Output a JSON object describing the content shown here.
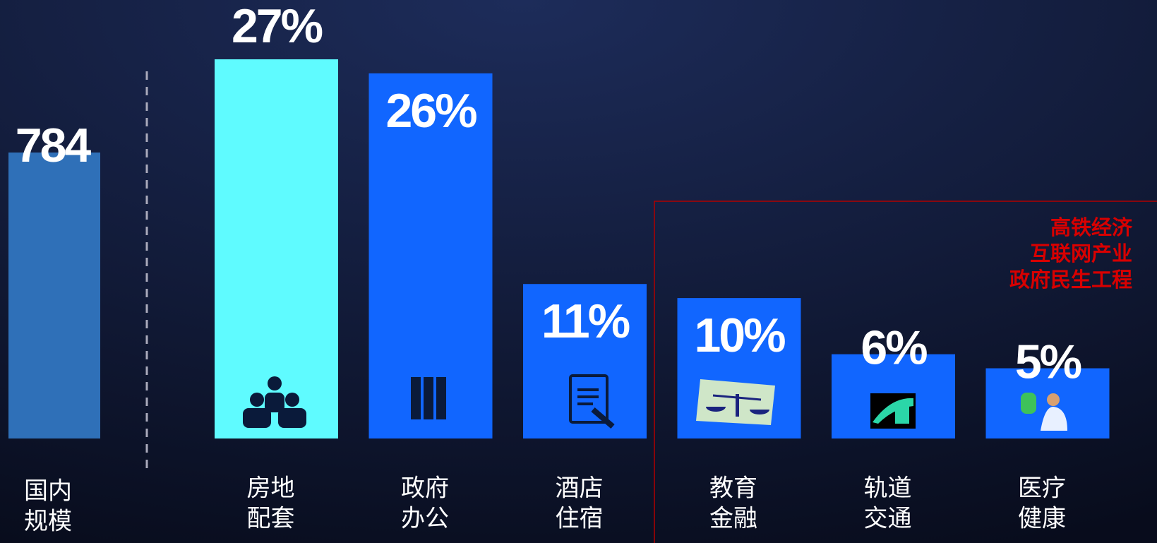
{
  "chart_data": {
    "type": "bar",
    "total": {
      "value": 784,
      "label": [
        "国内",
        "规模"
      ],
      "color": "#2f70b8"
    },
    "categories": [
      [
        "房地",
        "配套"
      ],
      [
        "政府",
        "办公"
      ],
      [
        "酒店",
        "住宿"
      ],
      [
        "教育",
        "金融"
      ],
      [
        "轨道",
        "交通"
      ],
      [
        "医疗",
        "健康"
      ]
    ],
    "values": [
      27,
      26,
      11,
      10,
      6,
      5
    ],
    "value_labels": [
      "27%",
      "26%",
      "11%",
      "10%",
      "6%",
      "5%"
    ],
    "colors": [
      "#5ffbff",
      "#1166ff",
      "#1166ff",
      "#1166ff",
      "#1166ff",
      "#1166ff"
    ],
    "annotation": [
      "高铁经济",
      "互联网产业",
      "政府民生工程"
    ]
  }
}
